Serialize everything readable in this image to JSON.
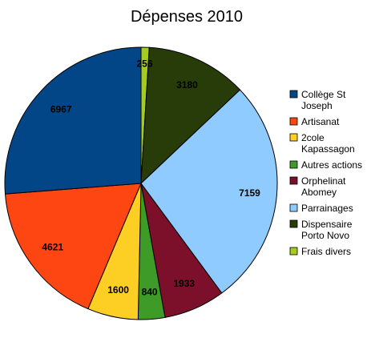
{
  "chart_data": {
    "type": "pie",
    "title": "Dépenses 2010",
    "start_angle_deg": 0,
    "direction": "clockwise",
    "legend_position": "right",
    "slices": [
      {
        "label": [
          "Frais divers"
        ],
        "value": 256,
        "color": "#a5cd1e"
      },
      {
        "label": [
          "Dispensaire",
          "Porto Novo"
        ],
        "value": 3180,
        "color": "#283c0a"
      },
      {
        "label": [
          "Parrainages"
        ],
        "value": 7159,
        "color": "#8fcbff"
      },
      {
        "label": [
          "Orphelinat",
          "Abomey"
        ],
        "value": 1933,
        "color": "#7c0f2a"
      },
      {
        "label": [
          "Autres actions"
        ],
        "value": 840,
        "color": "#3f9b27"
      },
      {
        "label": [
          "2cole",
          "Kapassagon"
        ],
        "value": 1600,
        "color": "#fdcf24"
      },
      {
        "label": [
          "Artisanat"
        ],
        "value": 4621,
        "color": "#fd4611"
      },
      {
        "label": [
          "Collège St",
          "Joseph"
        ],
        "value": 6967,
        "color": "#034688"
      }
    ],
    "legend_order": [
      7,
      6,
      5,
      4,
      3,
      2,
      1,
      0
    ]
  }
}
